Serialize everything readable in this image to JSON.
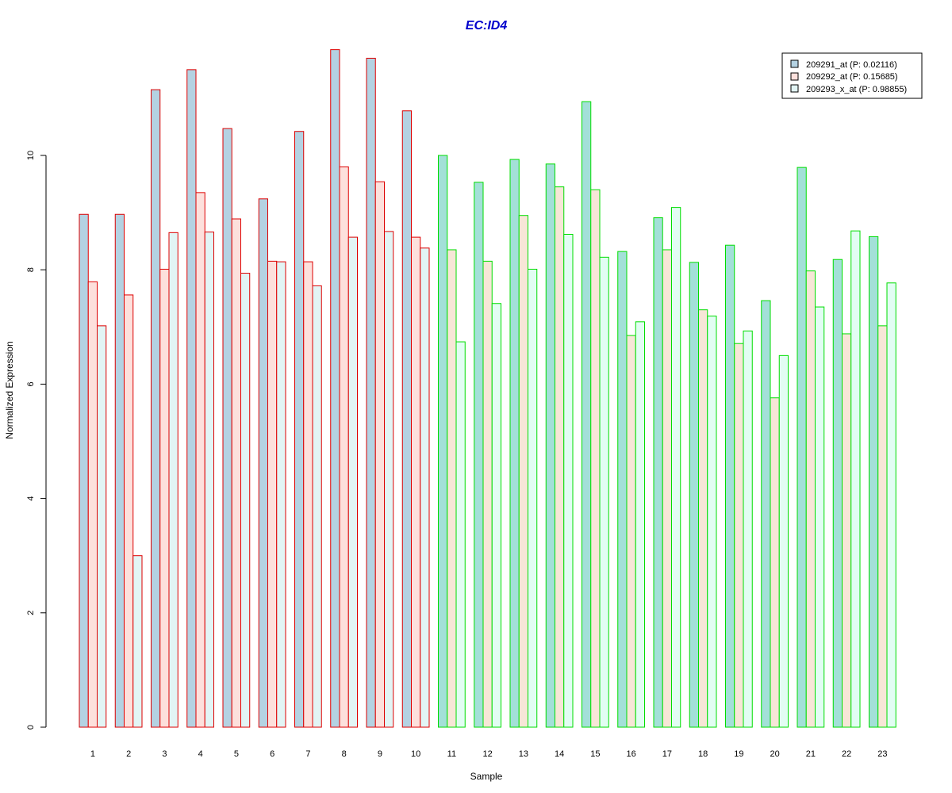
{
  "chart_data": {
    "type": "bar",
    "title": "EC:ID4",
    "xlabel": "Sample",
    "ylabel": "Normalized Expression",
    "ylim": [
      0,
      12
    ],
    "yticks": [
      0,
      2,
      4,
      6,
      8,
      10
    ],
    "categories": [
      "1",
      "2",
      "3",
      "4",
      "5",
      "6",
      "7",
      "8",
      "9",
      "10",
      "11",
      "12",
      "13",
      "14",
      "15",
      "16",
      "17",
      "18",
      "19",
      "20",
      "21",
      "22",
      "23"
    ],
    "group_border_colors": [
      "#dd0000",
      "#dd0000",
      "#dd0000",
      "#dd0000",
      "#dd0000",
      "#dd0000",
      "#dd0000",
      "#dd0000",
      "#dd0000",
      "#dd0000",
      "#00dd00",
      "#00dd00",
      "#00dd00",
      "#00dd00",
      "#00dd00",
      "#00dd00",
      "#00dd00",
      "#00dd00",
      "#00dd00",
      "#00dd00",
      "#00dd00",
      "#00dd00",
      "#00dd00"
    ],
    "series": [
      {
        "name": "209291_at (P: 0.02116)",
        "fill_red_group": "#b4d2e2",
        "fill_green_group": "#a3e0d8",
        "values": [
          8.97,
          8.97,
          11.15,
          11.5,
          10.47,
          9.24,
          10.42,
          11.85,
          11.7,
          10.78,
          10.0,
          9.53,
          9.93,
          9.85,
          10.94,
          8.32,
          8.91,
          8.13,
          8.43,
          7.46,
          9.79,
          8.18,
          8.58
        ]
      },
      {
        "name": "209292_at (P: 0.15685)",
        "fill_red_group": "#fde0dc",
        "fill_green_group": "#f7e6d7",
        "values": [
          7.79,
          7.56,
          8.01,
          9.35,
          8.89,
          8.15,
          8.14,
          9.8,
          9.54,
          8.57,
          8.35,
          8.15,
          8.95,
          9.45,
          9.4,
          6.85,
          8.35,
          7.3,
          6.71,
          5.76,
          7.98,
          6.88,
          7.02
        ]
      },
      {
        "name": "209293_x_at (P: 0.98855)",
        "fill_red_group": "#e2f5f5",
        "fill_green_group": "#e2fdf3",
        "values": [
          7.02,
          3.0,
          8.65,
          8.66,
          7.94,
          8.14,
          7.72,
          8.57,
          8.67,
          8.38,
          6.74,
          7.41,
          8.01,
          8.62,
          8.22,
          7.09,
          9.09,
          7.19,
          6.93,
          6.5,
          7.35,
          8.68,
          7.77
        ]
      }
    ],
    "legend": {
      "placement": "top-right",
      "swatch_colors": [
        "#b4d2e2",
        "#fde0dc",
        "#e2f5f5"
      ]
    }
  }
}
